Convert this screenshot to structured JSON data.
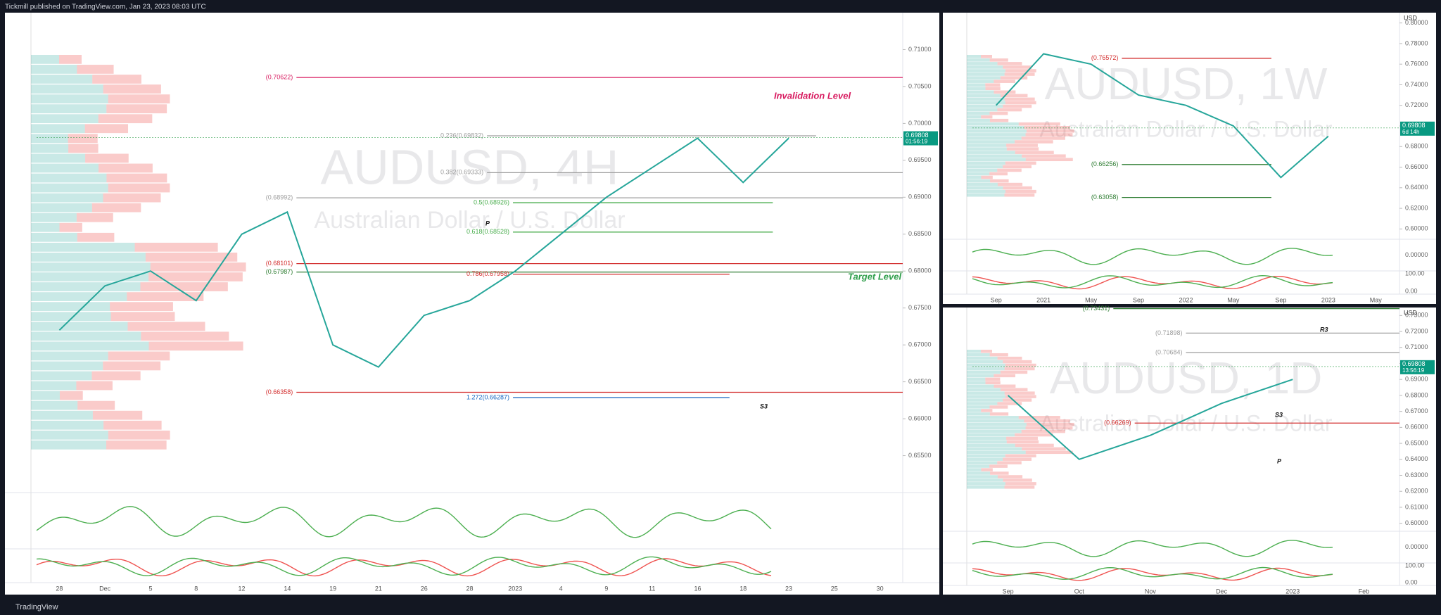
{
  "header": {
    "title": "Tickmill published on TradingView.com, Jan 23, 2023 08:03 UTC"
  },
  "footer": {
    "brand": "TradingView"
  },
  "chart_data": [
    {
      "type": "line",
      "title": "AUDUSD, 4H",
      "subtitle": "Australian Dollar / U.S. Dollar",
      "categories": [
        "28",
        "Dec",
        "5",
        "8",
        "12",
        "14",
        "19",
        "21",
        "26",
        "28",
        "2023",
        "4",
        "9",
        "11",
        "16",
        "18",
        "23",
        "25",
        "30"
      ],
      "series": [
        {
          "name": "AUDUSD",
          "color": "#26a69a",
          "values": [
            0.672,
            0.678,
            0.68,
            0.676,
            0.685,
            0.688,
            0.67,
            0.667,
            0.674,
            0.676,
            0.68,
            0.685,
            0.69,
            0.694,
            0.698,
            0.692,
            0.698,
            null,
            null
          ]
        }
      ],
      "ylim": [
        0.65,
        0.715
      ],
      "yticks": [
        {
          "value": 0.655,
          "label": "0.65500"
        },
        {
          "value": 0.66,
          "label": "0.66000"
        },
        {
          "value": 0.665,
          "label": "0.66500"
        },
        {
          "value": 0.67,
          "label": "0.67000"
        },
        {
          "value": 0.675,
          "label": "0.67500"
        },
        {
          "value": 0.68,
          "label": "0.68000"
        },
        {
          "value": 0.685,
          "label": "0.68500"
        },
        {
          "value": 0.69,
          "label": "0.69000"
        },
        {
          "value": 0.695,
          "label": "0.69500"
        },
        {
          "value": 0.7,
          "label": "0.70000"
        },
        {
          "value": 0.705,
          "label": "0.70500"
        },
        {
          "value": 0.71,
          "label": "0.71000"
        }
      ],
      "price": 0.69808,
      "countdown": "01:56:19",
      "levels": [
        {
          "label": "(0.70622)",
          "value": 0.70622,
          "color": "#d81b60"
        },
        {
          "label": "0.236(0.69832)",
          "value": 0.69832,
          "color": "#9e9e9e"
        },
        {
          "label": "0.382(0.69333)",
          "value": 0.69333,
          "color": "#9e9e9e"
        },
        {
          "label": "(0.68992)",
          "value": 0.68992,
          "color": "#9e9e9e"
        },
        {
          "label": "0.5(0.68926)",
          "value": 0.68926,
          "color": "#4caf50"
        },
        {
          "label": "0.618(0.68528)",
          "value": 0.68528,
          "color": "#4caf50"
        },
        {
          "label": "(0.68101)",
          "value": 0.68101,
          "color": "#d32f2f"
        },
        {
          "label": "(0.67987)",
          "value": 0.67987,
          "color": "#2e7d32"
        },
        {
          "label": "0.786(0.67958)",
          "value": 0.67958,
          "color": "#d32f2f"
        },
        {
          "label": "(0.66358)",
          "value": 0.66358,
          "color": "#d32f2f"
        },
        {
          "label": "1.272(0.66287)",
          "value": 0.66287,
          "color": "#1565c0"
        }
      ],
      "annotations": [
        "Invalidation Level",
        "Target Level",
        "S3",
        "P"
      ]
    },
    {
      "type": "line",
      "title": "AUDUSD, 1W",
      "subtitle": "Australian Dollar / U.S. Dollar",
      "unit": "USD",
      "categories": [
        "Sep",
        "2021",
        "May",
        "Sep",
        "2022",
        "May",
        "Sep",
        "2023",
        "May"
      ],
      "series": [
        {
          "name": "AUDUSD",
          "color": "#26a69a",
          "values": [
            0.72,
            0.77,
            0.76,
            0.73,
            0.72,
            0.7,
            0.65,
            0.69,
            null
          ]
        }
      ],
      "ylim": [
        0.59,
        0.81
      ],
      "yticks": [
        {
          "value": 0.6,
          "label": "0.60000"
        },
        {
          "value": 0.62,
          "label": "0.62000"
        },
        {
          "value": 0.64,
          "label": "0.64000"
        },
        {
          "value": 0.66,
          "label": "0.66000"
        },
        {
          "value": 0.68,
          "label": "0.68000"
        },
        {
          "value": 0.7,
          "label": "0.70000"
        },
        {
          "value": 0.72,
          "label": "0.72000"
        },
        {
          "value": 0.74,
          "label": "0.74000"
        },
        {
          "value": 0.76,
          "label": "0.76000"
        },
        {
          "value": 0.78,
          "label": "0.78000"
        },
        {
          "value": 0.8,
          "label": "0.80000"
        }
      ],
      "price": 0.69808,
      "countdown": "6d 14h",
      "levels": [
        {
          "label": "(0.76572)",
          "value": 0.76572,
          "color": "#d32f2f"
        },
        {
          "label": "(0.66256)",
          "value": 0.66256,
          "color": "#2e7d32"
        },
        {
          "label": "(0.63058)",
          "value": 0.63058,
          "color": "#2e7d32"
        }
      ],
      "osc_labels": [
        "0.00000",
        "100.00",
        "0.00"
      ]
    },
    {
      "type": "line",
      "title": "AUDUSD, 1D",
      "subtitle": "Australian Dollar / U.S. Dollar",
      "unit": "USD",
      "categories": [
        "Sep",
        "Oct",
        "Nov",
        "Dec",
        "2023",
        "Feb"
      ],
      "series": [
        {
          "name": "AUDUSD",
          "color": "#26a69a",
          "values": [
            0.68,
            0.64,
            0.655,
            0.675,
            0.69,
            null
          ]
        }
      ],
      "ylim": [
        0.595,
        0.735
      ],
      "yticks": [
        {
          "value": 0.6,
          "label": "0.60000"
        },
        {
          "value": 0.61,
          "label": "0.61000"
        },
        {
          "value": 0.62,
          "label": "0.62000"
        },
        {
          "value": 0.63,
          "label": "0.63000"
        },
        {
          "value": 0.64,
          "label": "0.64000"
        },
        {
          "value": 0.65,
          "label": "0.65000"
        },
        {
          "value": 0.66,
          "label": "0.66000"
        },
        {
          "value": 0.67,
          "label": "0.67000"
        },
        {
          "value": 0.68,
          "label": "0.68000"
        },
        {
          "value": 0.69,
          "label": "0.69000"
        },
        {
          "value": 0.7,
          "label": "0.70000"
        },
        {
          "value": 0.71,
          "label": "0.71000"
        },
        {
          "value": 0.72,
          "label": "0.72000"
        },
        {
          "value": 0.73,
          "label": "0.73000"
        }
      ],
      "price": 0.69808,
      "countdown": "13:56:19",
      "levels": [
        {
          "label": "(0.73431)",
          "value": 0.73431,
          "color": "#2e7d32"
        },
        {
          "label": "(0.71898)",
          "value": 0.71898,
          "color": "#9e9e9e"
        },
        {
          "label": "(0.70684)",
          "value": 0.70684,
          "color": "#9e9e9e"
        },
        {
          "label": "(0.66269)",
          "value": 0.66269,
          "color": "#d32f2f"
        }
      ],
      "annotations": [
        "R3",
        "S3",
        "P"
      ],
      "osc_labels": [
        "0.00000",
        "100.00",
        "0.00"
      ]
    }
  ]
}
